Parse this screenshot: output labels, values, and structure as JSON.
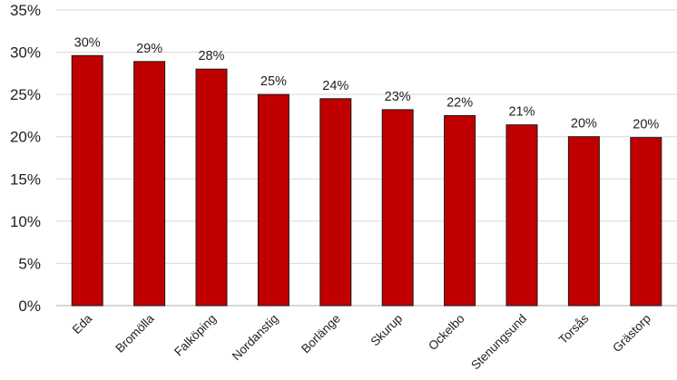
{
  "chart_data": {
    "type": "bar",
    "categories": [
      "Eda",
      "Bromölla",
      "Falköping",
      "Nordanstig",
      "Borlänge",
      "Skurup",
      "Ockelbo",
      "Stenungsund",
      "Torsås",
      "Grästorp"
    ],
    "values": [
      29.6,
      28.9,
      28.0,
      25.0,
      24.5,
      23.2,
      22.5,
      21.4,
      20.0,
      19.9
    ],
    "data_labels": [
      "30%",
      "29%",
      "28%",
      "25%",
      "24%",
      "23%",
      "22%",
      "21%",
      "20%",
      "20%"
    ],
    "title": "",
    "xlabel": "",
    "ylabel": "",
    "ylim": [
      0,
      35
    ],
    "yticks": [
      0,
      5,
      10,
      15,
      20,
      25,
      30,
      35
    ],
    "ytick_labels": [
      "0%",
      "5%",
      "10%",
      "15%",
      "20%",
      "25%",
      "30%",
      "35%"
    ],
    "grid": true,
    "legend": "none",
    "bar_color": "#c00000",
    "x_label_rotation": -45
  }
}
